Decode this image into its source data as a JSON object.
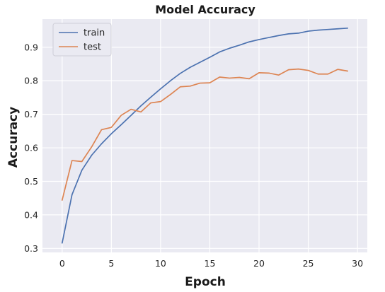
{
  "chart_data": {
    "type": "line",
    "title": "Model Accuracy",
    "xlabel": "Epoch",
    "ylabel": "Accuracy",
    "xlim": [
      -2,
      31
    ],
    "ylim": [
      0.288,
      0.984
    ],
    "xticks": [
      0,
      5,
      10,
      15,
      20,
      25,
      30
    ],
    "yticks": [
      0.3,
      0.4,
      0.5,
      0.6,
      0.7,
      0.8,
      0.9
    ],
    "ytick_labels": [
      "0.3",
      "0.4",
      "0.5",
      "0.6",
      "0.7",
      "0.8",
      "0.9"
    ],
    "grid": true,
    "legend": "top-left",
    "x": [
      0,
      1,
      2,
      3,
      4,
      5,
      6,
      7,
      8,
      9,
      10,
      11,
      12,
      13,
      14,
      15,
      16,
      17,
      18,
      19,
      20,
      21,
      22,
      23,
      24,
      25,
      26,
      27,
      28,
      29
    ],
    "series": [
      {
        "name": "train",
        "color": "#4c72b0",
        "values": [
          0.316,
          0.46,
          0.533,
          0.578,
          0.612,
          0.642,
          0.669,
          0.697,
          0.725,
          0.751,
          0.776,
          0.8,
          0.822,
          0.84,
          0.855,
          0.87,
          0.886,
          0.897,
          0.906,
          0.916,
          0.923,
          0.929,
          0.935,
          0.94,
          0.942,
          0.948,
          0.951,
          0.953,
          0.955,
          0.957
        ]
      },
      {
        "name": "test",
        "color": "#dd8452",
        "values": [
          0.444,
          0.562,
          0.559,
          0.603,
          0.654,
          0.661,
          0.697,
          0.715,
          0.707,
          0.734,
          0.738,
          0.759,
          0.782,
          0.784,
          0.793,
          0.794,
          0.811,
          0.808,
          0.81,
          0.806,
          0.824,
          0.823,
          0.817,
          0.833,
          0.835,
          0.831,
          0.82,
          0.82,
          0.834,
          0.829
        ]
      }
    ]
  }
}
